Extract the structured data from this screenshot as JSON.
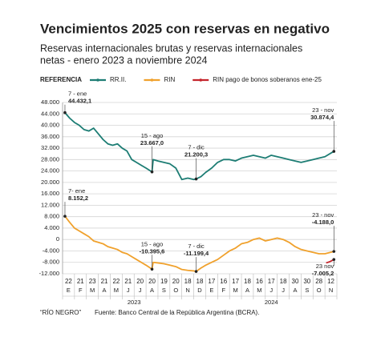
{
  "chart_data": {
    "type": "line",
    "title": "Vencimientos 2025 con reservas en negativo",
    "subtitle": [
      "Reservas internacionales brutas y reservas internacionales",
      "netas - enero 2023 a noviembre 2024"
    ],
    "legend_title": "REFERENCIA",
    "footer": [
      "“RÍO NEGRO”",
      "Fuente: Banco Central de la República Argentina (BCRA)."
    ],
    "categories": [
      "E",
      "F",
      "M",
      "A",
      "M",
      "J",
      "J",
      "A",
      "S",
      "O",
      "N",
      "D",
      "E",
      "F",
      "M",
      "A",
      "M",
      "J",
      "J",
      "A",
      "S",
      "O",
      "N"
    ],
    "category_days": [
      "22",
      "21",
      "23",
      "21",
      "22",
      "21",
      "20",
      "20",
      "19",
      "20",
      "18",
      "18",
      "17",
      "16",
      "17",
      "18",
      "16",
      "17",
      "18",
      "30",
      "30",
      "28",
      "12"
    ],
    "years": [
      "2023",
      "2024"
    ],
    "xlim": [
      0,
      23
    ],
    "ylim": [
      -12000,
      48000
    ],
    "yticks": [
      {
        "value": 48000,
        "label": "48.000"
      },
      {
        "value": 44000,
        "label": "44.000"
      },
      {
        "value": 40000,
        "label": "40.000"
      },
      {
        "value": 36000,
        "label": "36.000"
      },
      {
        "value": 32000,
        "label": "32.000"
      },
      {
        "value": 28000,
        "label": "28.000"
      },
      {
        "value": 24000,
        "label": "24.000"
      },
      {
        "value": 20000,
        "label": "20.000"
      },
      {
        "value": 16000,
        "label": "16.000"
      },
      {
        "value": 12000,
        "label": "12.000"
      },
      {
        "value": 8000,
        "label": "8.000"
      },
      {
        "value": 4000,
        "label": "4.000"
      },
      0,
      {
        "value": -4000,
        "label": "-4.000"
      },
      {
        "value": -8000,
        "label": "-8.000"
      },
      {
        "value": -12000,
        "label": "-12.000"
      }
    ],
    "grid": true,
    "series": [
      {
        "name": "RR.II.",
        "color": "#1d7d74",
        "x": [
          0.2,
          0.6,
          1,
          1.4,
          1.8,
          2.2,
          2.6,
          3,
          3.4,
          3.8,
          4.2,
          4.6,
          5,
          5.4,
          5.8,
          6.2,
          6.6,
          7,
          7.5,
          7.6,
          8,
          8.5,
          9,
          9.5,
          10,
          10.5,
          11,
          11.2,
          11.6,
          12,
          12.5,
          13,
          13.5,
          14,
          14.5,
          15,
          15.5,
          16,
          16.5,
          17,
          17.5,
          18,
          18.5,
          19,
          19.5,
          20,
          20.5,
          21,
          21.5,
          22,
          22.75
        ],
        "values": [
          44432.1,
          42500,
          41000,
          40000,
          38500,
          38000,
          39000,
          37000,
          35000,
          33500,
          33000,
          33500,
          32000,
          31000,
          28000,
          27000,
          26000,
          25000,
          23667,
          28000,
          27500,
          27000,
          26500,
          25000,
          21000,
          21500,
          21000,
          21200.3,
          22000,
          23500,
          25000,
          27000,
          28000,
          28000,
          27500,
          28500,
          29000,
          29500,
          29000,
          28500,
          29500,
          29000,
          28500,
          28000,
          27500,
          27000,
          27500,
          28000,
          28500,
          29000,
          30874.4
        ]
      },
      {
        "name": "RIN",
        "color": "#f0a12c",
        "x": [
          0.2,
          0.6,
          1,
          1.4,
          1.8,
          2.2,
          2.6,
          3,
          3.4,
          3.8,
          4.2,
          4.6,
          5,
          5.4,
          5.8,
          6.2,
          6.6,
          7,
          7.5,
          7.6,
          8,
          8.5,
          9,
          9.5,
          10,
          10.5,
          11,
          11.2,
          11.6,
          12,
          12.5,
          13,
          13.5,
          14,
          14.5,
          15,
          15.5,
          16,
          16.5,
          17,
          17.5,
          18,
          18.5,
          19,
          19.5,
          20,
          20.5,
          21,
          21.5,
          22,
          22.75
        ],
        "values": [
          8152.2,
          6000,
          4000,
          3000,
          2000,
          1000,
          -500,
          -1000,
          -1500,
          -2500,
          -3000,
          -3500,
          -4500,
          -5000,
          -6000,
          -7000,
          -8000,
          -9000,
          -10395.6,
          -8000,
          -8200,
          -8500,
          -9000,
          -9500,
          -10500,
          -10800,
          -11000,
          -11199.4,
          -10000,
          -9000,
          -8000,
          -7000,
          -5500,
          -4000,
          -3000,
          -1500,
          -1000,
          0,
          500,
          -500,
          0,
          500,
          0,
          -1000,
          -2500,
          -3500,
          -4000,
          -4500,
          -5000,
          -5000,
          -4188
        ]
      },
      {
        "name": "RIN  pago de bonos soberanos ene-25",
        "color": "#c4242b",
        "x": [
          22.1,
          22.4,
          22.75
        ],
        "values": [
          -8200,
          -7800,
          -7005.2
        ]
      }
    ],
    "annotations": [
      {
        "series": 0,
        "x": 0.2,
        "value": 44432.1,
        "date": "7 - ene",
        "label": "44.432,1"
      },
      {
        "series": 0,
        "x": 7.5,
        "value": 23667,
        "date": "15 - ago",
        "label": "23.667,0"
      },
      {
        "series": 0,
        "x": 11.2,
        "value": 21200.3,
        "date": "7 - dic",
        "label": "21.200,3"
      },
      {
        "series": 0,
        "x": 22.75,
        "value": 30874.4,
        "date": "23 - nov",
        "label": "30.874,4"
      },
      {
        "series": 1,
        "x": 0.2,
        "value": 8152.2,
        "date": "7- ene",
        "label": "8.152,2"
      },
      {
        "series": 1,
        "x": 7.5,
        "value": -10395.6,
        "date": "15 - ago",
        "label": "-10.395,6"
      },
      {
        "series": 1,
        "x": 11.2,
        "value": -11199.4,
        "date": "7 - dic",
        "label": "-11.199,4"
      },
      {
        "series": 1,
        "x": 22.75,
        "value": -4188,
        "date": "23 - nov",
        "label": "-4.188,0"
      },
      {
        "series": 2,
        "x": 22.75,
        "value": -7005.2,
        "date": "23 nov",
        "label": "-7.005,2"
      }
    ]
  }
}
